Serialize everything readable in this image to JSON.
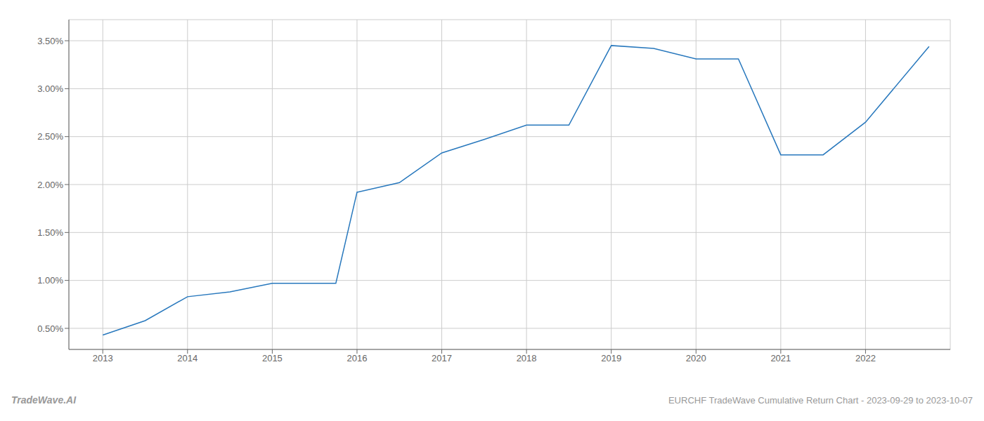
{
  "chart_data": {
    "type": "line",
    "x": [
      2013.0,
      2013.5,
      2014.0,
      2014.5,
      2015.0,
      2015.75,
      2016.0,
      2016.5,
      2017.0,
      2017.5,
      2018.0,
      2018.5,
      2019.0,
      2019.5,
      2020.0,
      2020.5,
      2021.0,
      2021.5,
      2022.0,
      2022.75
    ],
    "values": [
      0.43,
      0.58,
      0.83,
      0.88,
      0.97,
      0.97,
      1.92,
      2.02,
      2.33,
      2.47,
      2.62,
      2.62,
      3.45,
      3.42,
      3.31,
      3.31,
      2.31,
      2.31,
      2.65,
      3.44
    ],
    "color": "#2878bd",
    "xlim": [
      2012.6,
      2023.0
    ],
    "ylim": [
      0.28,
      3.72
    ],
    "xticks": [
      2013,
      2014,
      2015,
      2016,
      2017,
      2018,
      2019,
      2020,
      2021,
      2022
    ],
    "yticks": [
      {
        "value": 0.5,
        "label": "0.50%"
      },
      {
        "value": 1.0,
        "label": "1.00%"
      },
      {
        "value": 1.5,
        "label": "1.50%"
      },
      {
        "value": 2.0,
        "label": "2.00%"
      },
      {
        "value": 2.5,
        "label": "2.50%"
      },
      {
        "value": 3.0,
        "label": "3.00%"
      },
      {
        "value": 3.5,
        "label": "3.50%"
      }
    ],
    "grid": true,
    "annotations": [
      "TradeWave.AI",
      "EURCHF TradeWave Cumulative Return Chart - 2023-09-29 to 2023-10-07"
    ]
  }
}
